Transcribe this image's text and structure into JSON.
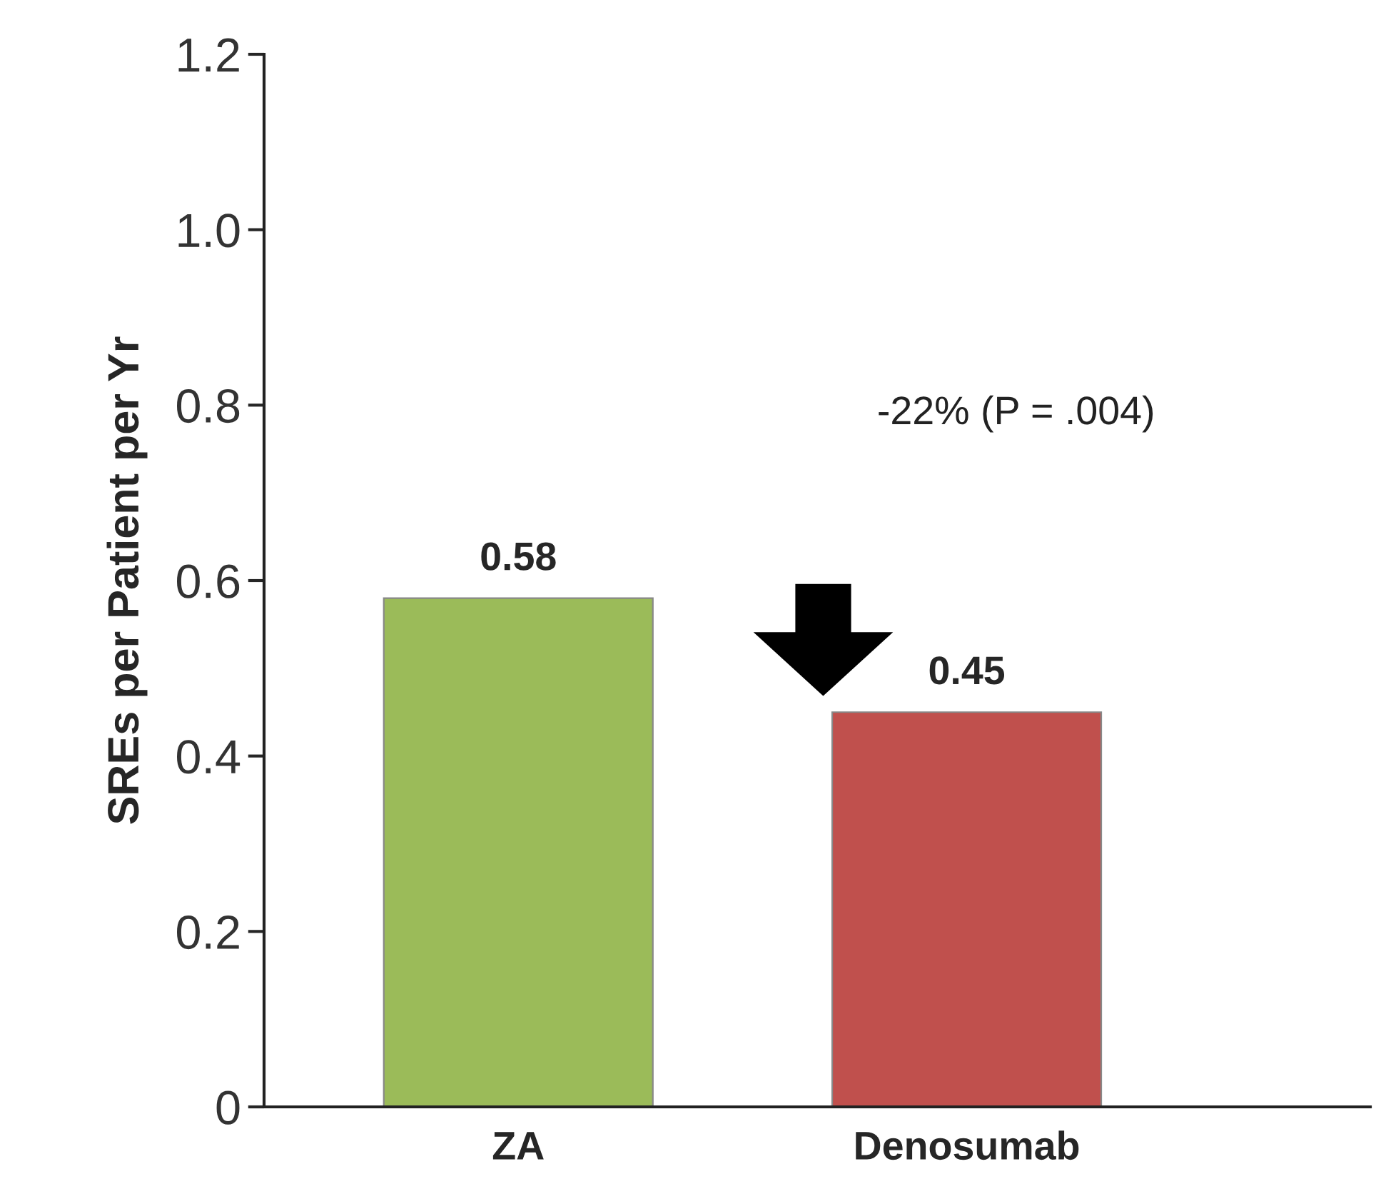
{
  "chart_data": {
    "type": "bar",
    "ylabel": "SREs per Patient per Yr",
    "categories": [
      "ZA",
      "Denosumab"
    ],
    "values": [
      0.58,
      0.45
    ],
    "colors": [
      "#9bbb59",
      "#c0504d"
    ],
    "data_labels": true,
    "ylim": [
      0,
      1.2
    ],
    "yticks": [
      {
        "value": 0,
        "label": "0"
      },
      {
        "value": 0.2,
        "label": "0.2"
      },
      {
        "value": 0.4,
        "label": "0.4"
      },
      {
        "value": 0.6,
        "label": "0.6"
      },
      {
        "value": 0.8,
        "label": "0.8"
      },
      {
        "value": 1.0,
        "label": "1.0"
      },
      {
        "value": 1.2,
        "label": "1.2"
      }
    ],
    "annotations": [
      "-22% (P = .004)"
    ],
    "grid": false,
    "legend": false
  }
}
